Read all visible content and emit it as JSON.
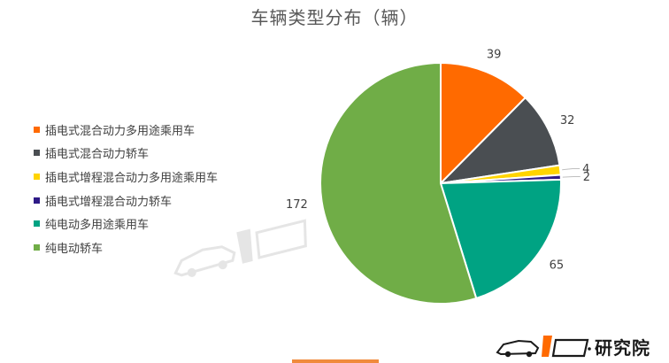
{
  "chart_data": {
    "type": "pie",
    "title": "车辆类型分布（辆）",
    "slices": [
      {
        "label": "插电式混合动力多用途乘用车",
        "value": 39,
        "color": "#ff6a00"
      },
      {
        "label": "插电式混合动力轿车",
        "value": 32,
        "color": "#4a4e52"
      },
      {
        "label": "插电式增程混合动力多用途乘用车",
        "value": 4,
        "color": "#ffd400"
      },
      {
        "label": "插电式增程混合动力轿车",
        "value": 2,
        "color": "#2e1a87"
      },
      {
        "label": "纯电动多用途乘用车",
        "value": 65,
        "color": "#00a383"
      },
      {
        "label": "纯电动轿车",
        "value": 172,
        "color": "#70ad47"
      }
    ],
    "start_angle_deg": 0,
    "direction": "clockwise",
    "legend_position": "left"
  },
  "watermark": {
    "bottom_logo_text": "研究院",
    "bottom_logo_icon": "car-brand-logo-icon",
    "center_logo_icon": "car-brand-watermark-icon"
  }
}
